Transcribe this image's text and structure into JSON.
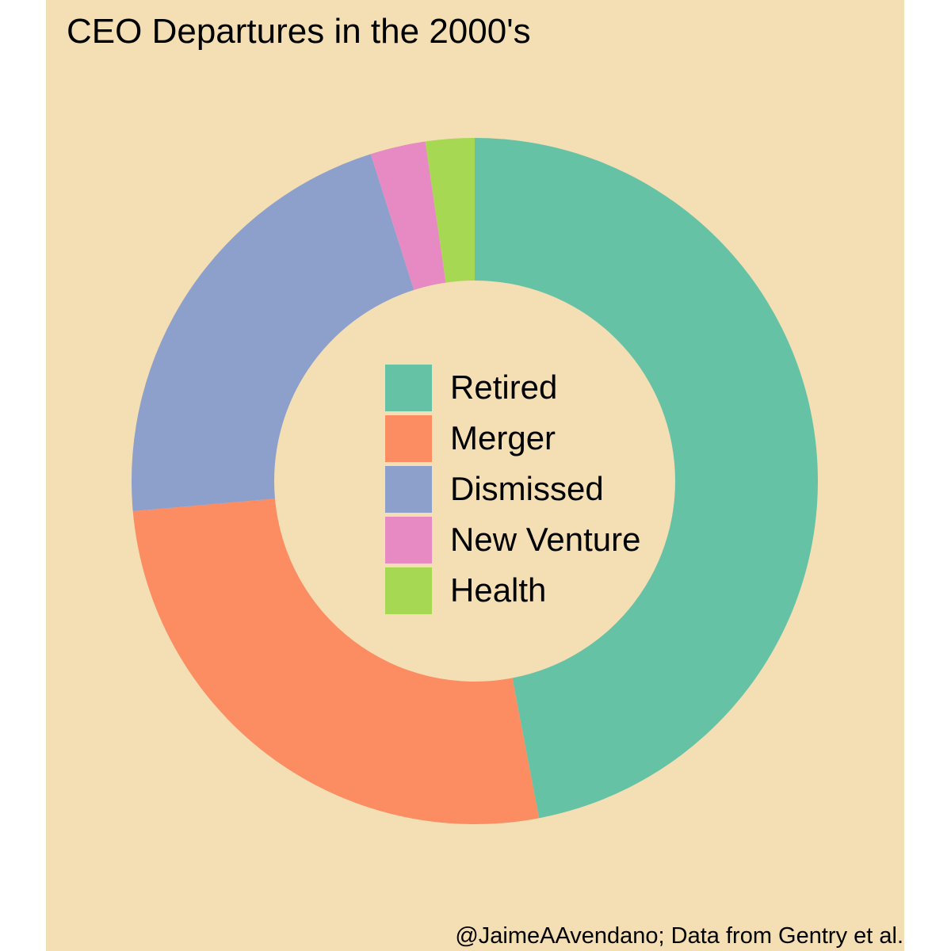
{
  "colors": {
    "panel_background": "#F4DEB4"
  },
  "chart_data": {
    "type": "donut",
    "title": "CEO Departures in the 2000's",
    "caption": "@JaimeAAvendano; Data from Gentry et al.",
    "legend_position": "center",
    "categories": [
      "Retired",
      "Merger",
      "Dismissed",
      "New Venture",
      "Health"
    ],
    "values": [
      47.0,
      26.6,
      21.5,
      2.6,
      2.3
    ],
    "colors": [
      "#66C2A5",
      "#FC8D62",
      "#8DA0CB",
      "#E78AC3",
      "#A6D854"
    ]
  }
}
